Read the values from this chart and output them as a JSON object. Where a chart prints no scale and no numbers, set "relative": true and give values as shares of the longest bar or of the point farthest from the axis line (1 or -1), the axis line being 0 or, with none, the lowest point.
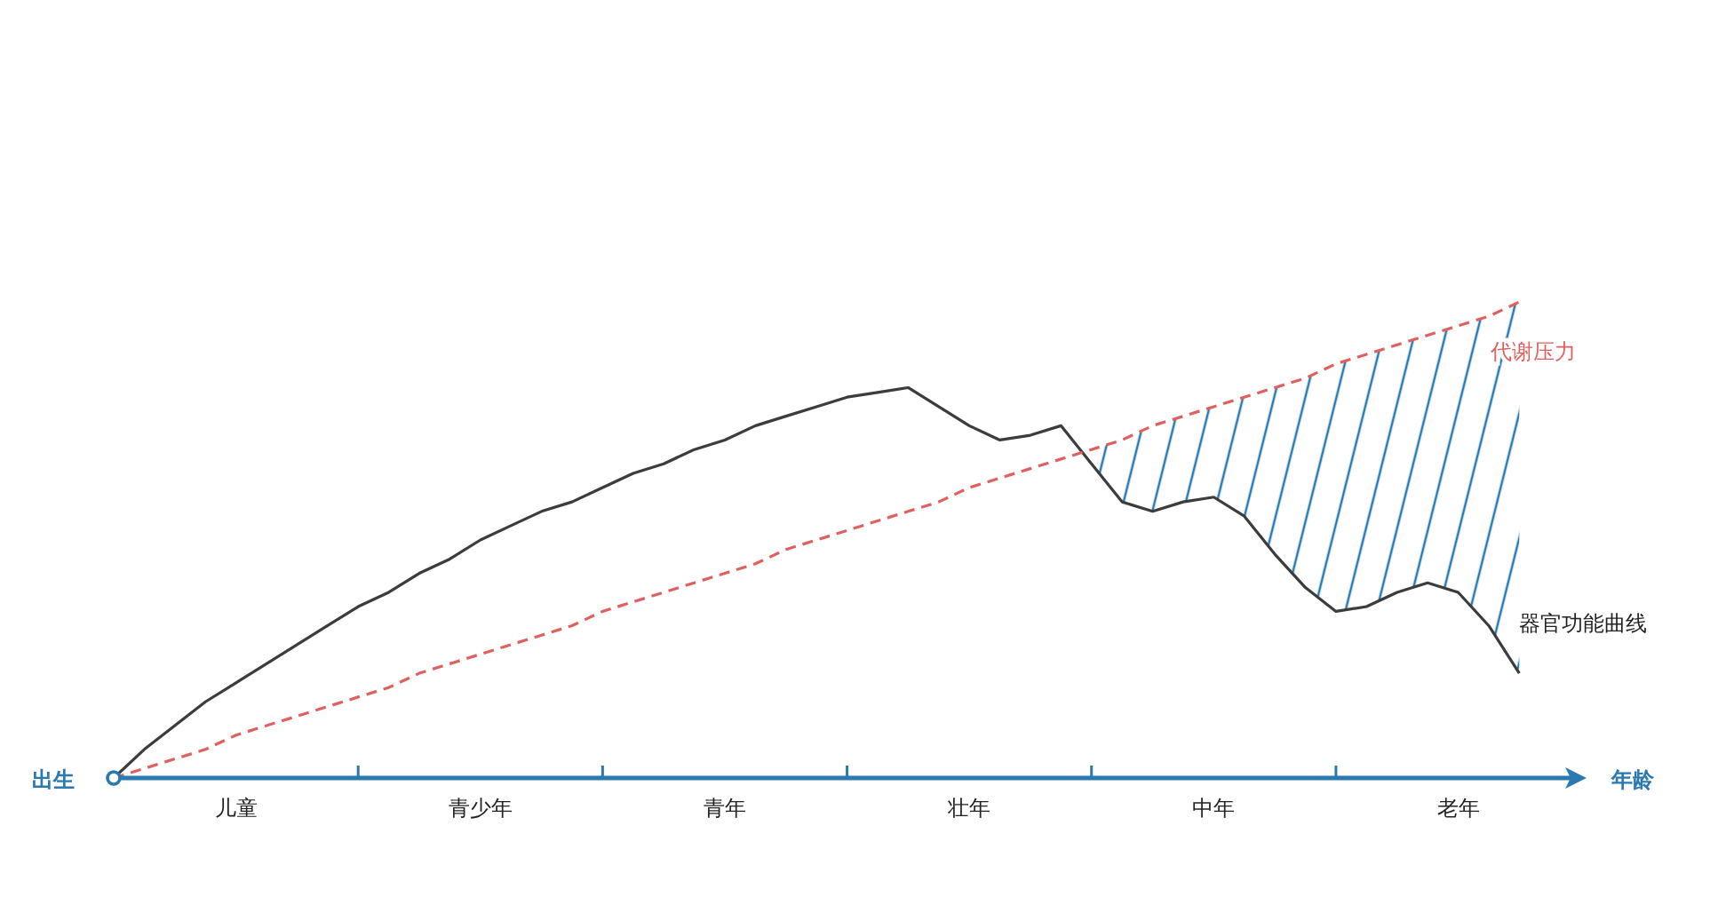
{
  "chart_data": {
    "type": "line",
    "relative": true,
    "xlabel": "年龄",
    "annotations": [
      "出生"
    ],
    "categories": [
      null,
      null,
      null,
      null,
      "儿童",
      null,
      null,
      null,
      null,
      null,
      null,
      null,
      "青少年",
      null,
      null,
      null,
      null,
      null,
      null,
      null,
      "青年",
      null,
      null,
      null,
      null,
      null,
      null,
      null,
      "壮年",
      null,
      null,
      null,
      null,
      null,
      null,
      null,
      "中年",
      null,
      null,
      null,
      null,
      null,
      null,
      null,
      "老年",
      null,
      null
    ],
    "series": [
      {
        "name": "器官功能曲线",
        "color": "#3c3c3c",
        "values": [
          0,
          0.06,
          0.11,
          0.16,
          0.2,
          0.24,
          0.28,
          0.32,
          0.36,
          0.39,
          0.43,
          0.46,
          0.5,
          0.53,
          0.56,
          0.58,
          0.61,
          0.64,
          0.66,
          0.69,
          0.71,
          0.74,
          0.76,
          0.78,
          0.8,
          0.81,
          0.82,
          0.78,
          0.74,
          0.71,
          0.72,
          0.74,
          0.66,
          0.58,
          0.56,
          0.58,
          0.59,
          0.55,
          0.47,
          0.4,
          0.35,
          0.36,
          0.39,
          0.41,
          0.39,
          0.32,
          0.22
        ]
      },
      {
        "name": "代谢压力",
        "line_style": "dashed",
        "color": "#e06060",
        "values": [
          0,
          0.02,
          0.04,
          0.06,
          0.09,
          0.11,
          0.13,
          0.15,
          0.17,
          0.19,
          0.22,
          0.24,
          0.26,
          0.28,
          0.3,
          0.32,
          0.35,
          0.37,
          0.39,
          0.41,
          0.43,
          0.45,
          0.48,
          0.5,
          0.52,
          0.54,
          0.56,
          0.58,
          0.61,
          0.63,
          0.65,
          0.67,
          0.69,
          0.71,
          0.74,
          0.76,
          0.78,
          0.8,
          0.82,
          0.84,
          0.87,
          0.89,
          0.91,
          0.93,
          0.95,
          0.97,
          1.0
        ]
      }
    ]
  }
}
